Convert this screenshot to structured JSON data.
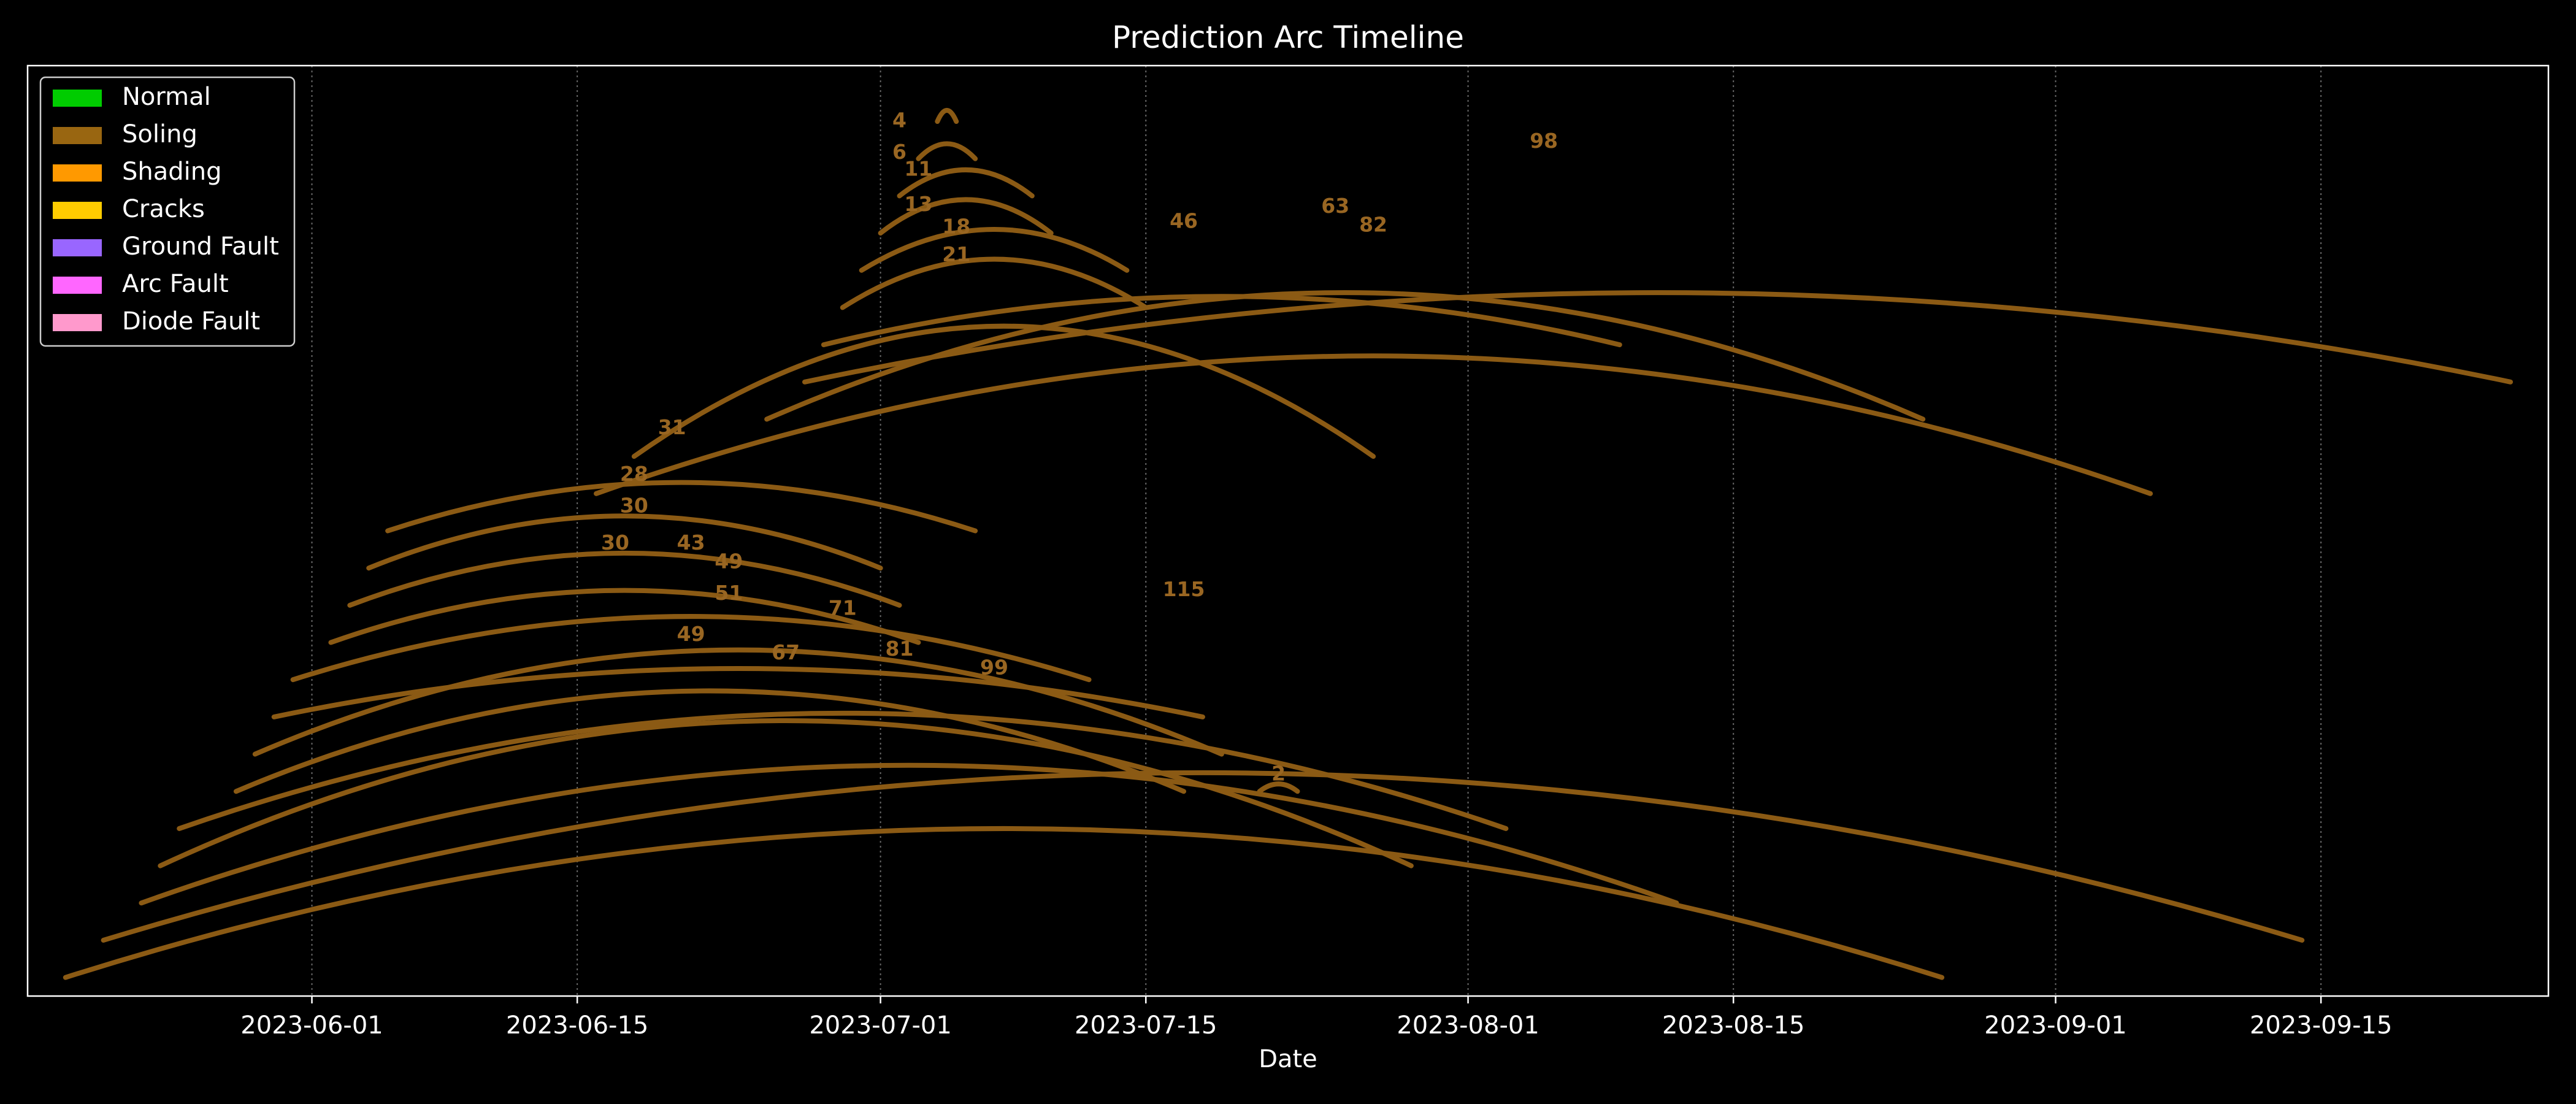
{
  "chart_data": {
    "type": "line",
    "title": "Prediction Arc Timeline",
    "xlabel": "Date",
    "ylabel": "",
    "x_axis": "date",
    "xlim": [
      "2023-05-17",
      "2023-09-27"
    ],
    "ylim": [
      0,
      25
    ],
    "yticks_shown": false,
    "grid": {
      "x": true,
      "y": false,
      "style": "dotted"
    },
    "xticks": [
      {
        "date": "2023-06-01",
        "label": "2023-06-01"
      },
      {
        "date": "2023-06-15",
        "label": "2023-06-15"
      },
      {
        "date": "2023-07-01",
        "label": "2023-07-01"
      },
      {
        "date": "2023-07-15",
        "label": "2023-07-15"
      },
      {
        "date": "2023-08-01",
        "label": "2023-08-01"
      },
      {
        "date": "2023-08-15",
        "label": "2023-08-15"
      },
      {
        "date": "2023-09-01",
        "label": "2023-09-01"
      },
      {
        "date": "2023-09-15",
        "label": "2023-09-15"
      }
    ],
    "legend": {
      "placement": "top-left",
      "entries": [
        {
          "label": "Normal",
          "color": "#00cc00"
        },
        {
          "label": "Soling",
          "color": "#996611"
        },
        {
          "label": "Shading",
          "color": "#ff9900"
        },
        {
          "label": "Cracks",
          "color": "#ffcc00"
        },
        {
          "label": "Ground Fault",
          "color": "#9966ff"
        },
        {
          "label": "Arc Fault",
          "color": "#ff66ff"
        },
        {
          "label": "Diode Fault",
          "color": "#ff99cc"
        }
      ]
    },
    "arc_color": "#8b5a14",
    "label_color": "#996622",
    "arcs": [
      {
        "start": "2023-05-19",
        "end": "2023-08-26",
        "base": 0.5,
        "peak": 4.5
      },
      {
        "start": "2023-05-21",
        "end": "2023-09-14",
        "base": 1.5,
        "peak": 6.0
      },
      {
        "start": "2023-05-23",
        "end": "2023-08-12",
        "base": 2.5,
        "peak": 6.2
      },
      {
        "start": "2023-05-24",
        "end": "2023-07-29",
        "base": 3.5,
        "peak": 7.4
      },
      {
        "start": "2023-05-25",
        "end": "2023-08-03",
        "base": 4.5,
        "peak": 7.6
      },
      {
        "start": "2023-05-28",
        "end": "2023-07-17",
        "base": 5.5,
        "peak": 8.2
      },
      {
        "start": "2023-05-29",
        "end": "2023-07-19",
        "base": 6.5,
        "peak": 9.3
      },
      {
        "start": "2023-05-30",
        "end": "2023-07-18",
        "base": 7.5,
        "peak": 8.8
      },
      {
        "start": "2023-05-31",
        "end": "2023-07-12",
        "base": 8.5,
        "peak": 10.2
      },
      {
        "start": "2023-06-02",
        "end": "2023-07-03",
        "base": 9.5,
        "peak": 10.9
      },
      {
        "start": "2023-06-03",
        "end": "2023-07-02",
        "base": 10.5,
        "peak": 11.9
      },
      {
        "start": "2023-06-04",
        "end": "2023-07-01",
        "base": 11.5,
        "peak": 12.9
      },
      {
        "start": "2023-06-05",
        "end": "2023-07-06",
        "base": 12.5,
        "peak": 13.8
      },
      {
        "start": "2023-06-16",
        "end": "2023-09-06",
        "base": 13.5,
        "peak": 17.2
      },
      {
        "start": "2023-06-18",
        "end": "2023-07-27",
        "base": 14.5,
        "peak": 18.0
      },
      {
        "start": "2023-06-25",
        "end": "2023-08-25",
        "base": 15.5,
        "peak": 18.9
      },
      {
        "start": "2023-06-27",
        "end": "2023-09-25",
        "base": 16.5,
        "peak": 18.9
      },
      {
        "start": "2023-06-28",
        "end": "2023-08-09",
        "base": 17.5,
        "peak": 18.8
      },
      {
        "start": "2023-06-29",
        "end": "2023-07-15",
        "base": 18.5,
        "peak": 19.8
      },
      {
        "start": "2023-06-30",
        "end": "2023-07-14",
        "base": 19.5,
        "peak": 20.6
      },
      {
        "start": "2023-07-01",
        "end": "2023-07-10",
        "base": 20.5,
        "peak": 21.4
      },
      {
        "start": "2023-07-02",
        "end": "2023-07-09",
        "base": 21.5,
        "peak": 22.2
      },
      {
        "start": "2023-07-03",
        "end": "2023-07-06",
        "base": 22.5,
        "peak": 22.9
      },
      {
        "start": "2023-07-04",
        "end": "2023-07-05",
        "base": 23.5,
        "peak": 23.8
      },
      {
        "start": "2023-07-21",
        "end": "2023-07-23",
        "base": 5.5,
        "peak": 5.7
      }
    ],
    "labels": [
      {
        "text": "4",
        "date": "2023-07-02",
        "y": 23.5
      },
      {
        "text": "6",
        "date": "2023-07-02",
        "y": 22.65
      },
      {
        "text": "11",
        "date": "2023-07-03",
        "y": 22.2
      },
      {
        "text": "13",
        "date": "2023-07-03",
        "y": 21.25
      },
      {
        "text": "18",
        "date": "2023-07-05",
        "y": 20.65
      },
      {
        "text": "21",
        "date": "2023-07-05",
        "y": 19.9
      },
      {
        "text": "46",
        "date": "2023-07-17",
        "y": 20.8
      },
      {
        "text": "63",
        "date": "2023-07-25",
        "y": 21.2
      },
      {
        "text": "82",
        "date": "2023-07-27",
        "y": 20.7
      },
      {
        "text": "98",
        "date": "2023-08-05",
        "y": 22.95
      },
      {
        "text": "31",
        "date": "2023-06-20",
        "y": 15.25
      },
      {
        "text": "28",
        "date": "2023-06-18",
        "y": 14.0
      },
      {
        "text": "30",
        "date": "2023-06-18",
        "y": 13.15
      },
      {
        "text": "30",
        "date": "2023-06-17",
        "y": 12.15
      },
      {
        "text": "43",
        "date": "2023-06-21",
        "y": 12.15
      },
      {
        "text": "49",
        "date": "2023-06-23",
        "y": 11.65
      },
      {
        "text": "51",
        "date": "2023-06-23",
        "y": 10.8
      },
      {
        "text": "71",
        "date": "2023-06-29",
        "y": 10.4
      },
      {
        "text": "115",
        "date": "2023-07-17",
        "y": 10.9
      },
      {
        "text": "49",
        "date": "2023-06-21",
        "y": 9.7
      },
      {
        "text": "67",
        "date": "2023-06-26",
        "y": 9.2
      },
      {
        "text": "81",
        "date": "2023-07-02",
        "y": 9.3
      },
      {
        "text": "99",
        "date": "2023-07-07",
        "y": 8.8
      },
      {
        "text": "2",
        "date": "2023-07-22",
        "y": 5.95
      }
    ]
  }
}
